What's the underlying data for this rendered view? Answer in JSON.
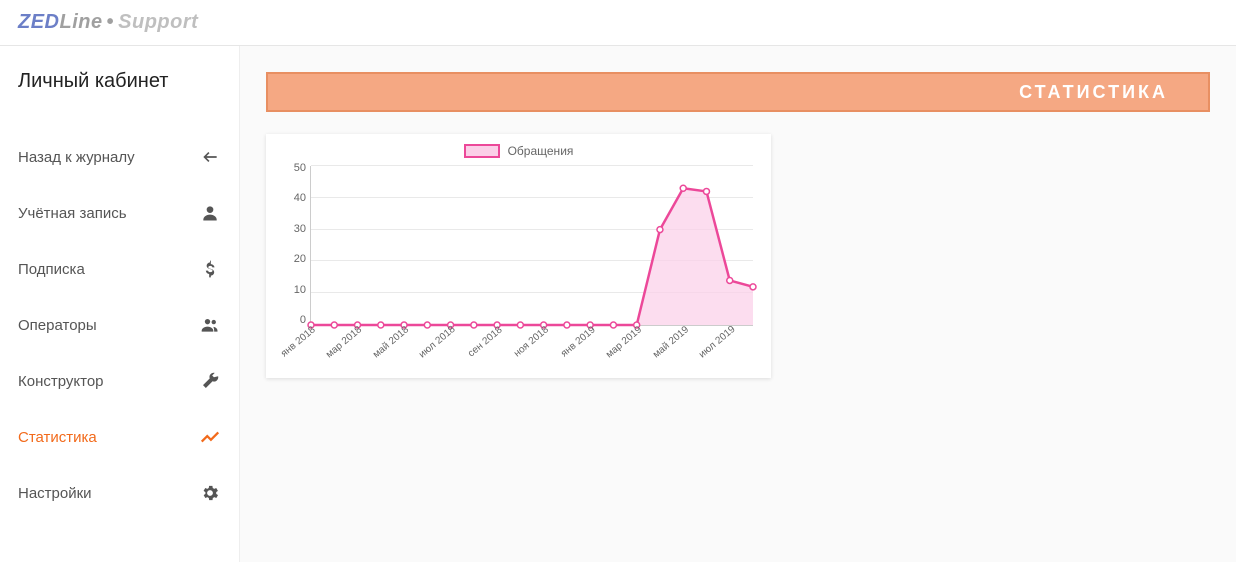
{
  "logo": {
    "zed": "ZED",
    "line": "Line",
    "support": "Support"
  },
  "sidebar": {
    "title": "Личный кабинет",
    "items": [
      {
        "label": "Назад к журналу",
        "icon": "back-arrow-icon",
        "active": false
      },
      {
        "label": "Учётная запись",
        "icon": "account-icon",
        "active": false
      },
      {
        "label": "Подписка",
        "icon": "dollar-icon",
        "active": false
      },
      {
        "label": "Операторы",
        "icon": "people-icon",
        "active": false
      },
      {
        "label": "Конструктор",
        "icon": "wrench-icon",
        "active": false
      },
      {
        "label": "Статистика",
        "icon": "trend-icon",
        "active": true
      },
      {
        "label": "Настройки",
        "icon": "gear-icon",
        "active": false
      }
    ]
  },
  "page_header": "СТАТИСТИКА",
  "chart": {
    "type": "area",
    "legend_label": "Обращения",
    "line_color": "#ec4899",
    "fill_color": "#fbcfe8",
    "fill_opacity": 0.7,
    "marker_color": "#ec4899",
    "marker_fill": "#ffffff",
    "marker_radius": 3,
    "line_width": 2.5,
    "background_color": "#ffffff",
    "grid_color": "#e9e9e9",
    "axis_color": "#cccccc",
    "tick_fontsize": 11,
    "ylim": [
      0,
      50
    ],
    "ytick_step": 10,
    "yticks": [
      0,
      10,
      20,
      30,
      40,
      50
    ],
    "x_labels": [
      "янв 2018",
      "мар 2018",
      "май 2018",
      "июл 2018",
      "сен 2018",
      "ноя 2018",
      "янв 2019",
      "мар 2019",
      "май 2019",
      "июл 2019"
    ],
    "values": [
      0,
      0,
      0,
      0,
      0,
      0,
      0,
      0,
      0,
      0,
      0,
      0,
      0,
      0,
      0,
      30,
      43,
      42,
      14,
      12
    ],
    "label_every": 2
  }
}
